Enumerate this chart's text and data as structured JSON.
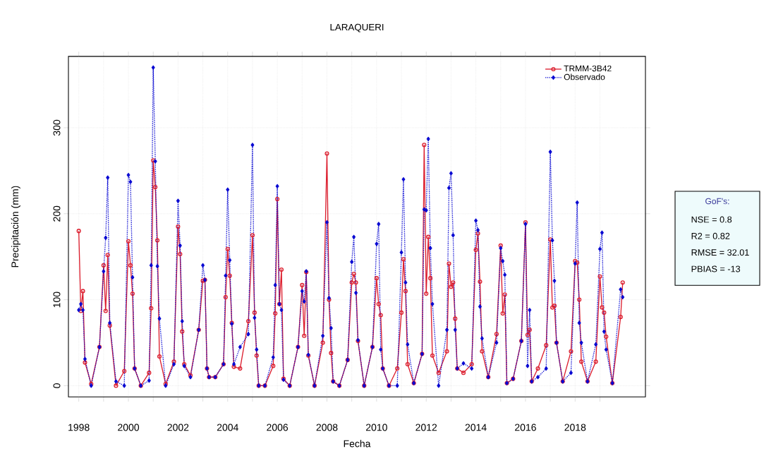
{
  "chart_data": {
    "type": "line",
    "title": "LARAQUERI",
    "xlabel": "Fecha",
    "ylabel": "Precipitación (mm)",
    "x": [
      "1998-01",
      "1998-02",
      "1998-03",
      "1998-04",
      "1998-07",
      "1998-11",
      "1999-01",
      "1999-02",
      "1999-03",
      "1999-04",
      "1999-07",
      "1999-11",
      "2000-01",
      "2000-02",
      "2000-03",
      "2000-04",
      "2000-07",
      "2000-11",
      "2000-12",
      "2001-01",
      "2001-02",
      "2001-03",
      "2001-04",
      "2001-07",
      "2001-11",
      "2002-01",
      "2002-02",
      "2002-03",
      "2002-04",
      "2002-07",
      "2002-11",
      "2003-01",
      "2003-02",
      "2003-03",
      "2003-04",
      "2003-07",
      "2003-11",
      "2003-12",
      "2004-01",
      "2004-02",
      "2004-03",
      "2004-04",
      "2004-07",
      "2004-11",
      "2005-01",
      "2005-02",
      "2005-03",
      "2005-04",
      "2005-07",
      "2005-11",
      "2005-12",
      "2006-01",
      "2006-02",
      "2006-03",
      "2006-04",
      "2006-07",
      "2006-11",
      "2007-01",
      "2007-02",
      "2007-03",
      "2007-04",
      "2007-07",
      "2007-11",
      "2008-01",
      "2008-02",
      "2008-03",
      "2008-04",
      "2008-07",
      "2008-11",
      "2009-01",
      "2009-02",
      "2009-03",
      "2009-04",
      "2009-07",
      "2009-11",
      "2010-01",
      "2010-02",
      "2010-03",
      "2010-04",
      "2010-07",
      "2010-11",
      "2011-01",
      "2011-02",
      "2011-03",
      "2011-04",
      "2011-07",
      "2011-11",
      "2011-12",
      "2012-01",
      "2012-02",
      "2012-03",
      "2012-04",
      "2012-07",
      "2012-11",
      "2012-12",
      "2013-01",
      "2013-02",
      "2013-03",
      "2013-04",
      "2013-07",
      "2013-11",
      "2014-01",
      "2014-02",
      "2014-03",
      "2014-04",
      "2014-07",
      "2014-11",
      "2015-01",
      "2015-02",
      "2015-03",
      "2015-04",
      "2015-07",
      "2015-11",
      "2016-01",
      "2016-02",
      "2016-03",
      "2016-04",
      "2016-07",
      "2016-11",
      "2017-01",
      "2017-02",
      "2017-03",
      "2017-04",
      "2017-07",
      "2017-11",
      "2018-01",
      "2018-02",
      "2018-03",
      "2018-04",
      "2018-07",
      "2018-11",
      "2019-01",
      "2019-02",
      "2019-03",
      "2019-04",
      "2019-07",
      "2019-11",
      "2019-12"
    ],
    "xlim": [
      "1997-08",
      "2020-11"
    ],
    "xticks": [
      {
        "value": "1998",
        "label": "1998"
      },
      {
        "value": "1999",
        "label": null
      },
      {
        "value": "2000",
        "label": "2000"
      },
      {
        "value": "2001",
        "label": null
      },
      {
        "value": "2002",
        "label": "2002"
      },
      {
        "value": "2003",
        "label": null
      },
      {
        "value": "2004",
        "label": "2004"
      },
      {
        "value": "2005",
        "label": null
      },
      {
        "value": "2006",
        "label": "2006"
      },
      {
        "value": "2007",
        "label": null
      },
      {
        "value": "2008",
        "label": "2008"
      },
      {
        "value": "2009",
        "label": null
      },
      {
        "value": "2010",
        "label": "2010"
      },
      {
        "value": "2011",
        "label": null
      },
      {
        "value": "2012",
        "label": "2012"
      },
      {
        "value": "2013",
        "label": null
      },
      {
        "value": "2014",
        "label": "2014"
      },
      {
        "value": "2015",
        "label": null
      },
      {
        "value": "2016",
        "label": "2016"
      },
      {
        "value": "2017",
        "label": null
      },
      {
        "value": "2018",
        "label": "2018"
      },
      {
        "value": "2019",
        "label": null
      }
    ],
    "ylim": [
      -13,
      383
    ],
    "yticks": [
      0,
      100,
      200,
      300
    ],
    "grid": true,
    "legend": "top right",
    "series": [
      {
        "name": "TRMM-3B42",
        "color": "#dc1e2e",
        "marker": "circle",
        "line_style": "solid",
        "values": [
          180,
          87,
          110,
          27,
          2,
          45,
          140,
          87,
          152,
          70,
          0,
          17,
          168,
          140,
          107,
          20,
          0,
          15,
          90,
          262,
          231,
          169,
          34,
          2,
          28,
          185,
          153,
          63,
          25,
          12,
          65,
          122,
          123,
          20,
          10,
          10,
          25,
          103,
          159,
          128,
          73,
          22,
          20,
          75,
          175,
          85,
          35,
          0,
          0,
          23,
          84,
          217,
          95,
          135,
          8,
          0,
          45,
          117,
          58,
          132,
          35,
          0,
          50,
          270,
          100,
          38,
          5,
          0,
          30,
          120,
          130,
          120,
          52,
          0,
          45,
          125,
          95,
          82,
          20,
          0,
          20,
          85,
          147,
          110,
          25,
          3,
          37,
          280,
          107,
          173,
          125,
          35,
          15,
          40,
          142,
          115,
          120,
          78,
          20,
          15,
          25,
          158,
          177,
          121,
          40,
          10,
          60,
          163,
          84,
          106,
          3,
          8,
          52,
          190,
          59,
          65,
          5,
          20,
          47,
          170,
          91,
          93,
          50,
          5,
          40,
          145,
          143,
          100,
          28,
          5,
          28,
          127,
          91,
          85,
          57,
          3,
          80,
          120
        ]
      },
      {
        "name": "Observado",
        "color": "#0a0ad2",
        "marker": "diamond",
        "line_style": "dotted",
        "values": [
          88,
          95,
          88,
          31,
          0,
          45,
          133,
          172,
          242,
          73,
          5,
          0,
          245,
          237,
          126,
          20,
          0,
          6,
          140,
          370,
          261,
          139,
          78,
          0,
          25,
          215,
          163,
          75,
          23,
          10,
          65,
          140,
          123,
          20,
          10,
          10,
          25,
          128,
          228,
          146,
          72,
          25,
          45,
          60,
          280,
          79,
          42,
          0,
          0,
          33,
          117,
          232,
          95,
          88,
          7,
          0,
          45,
          110,
          98,
          133,
          36,
          0,
          58,
          190,
          102,
          67,
          5,
          0,
          30,
          144,
          173,
          108,
          53,
          0,
          45,
          165,
          188,
          42,
          20,
          0,
          0,
          155,
          240,
          120,
          48,
          3,
          37,
          205,
          204,
          287,
          160,
          95,
          0,
          65,
          230,
          247,
          175,
          65,
          20,
          26,
          20,
          192,
          181,
          92,
          55,
          10,
          50,
          160,
          145,
          129,
          3,
          8,
          52,
          188,
          23,
          88,
          5,
          10,
          20,
          272,
          169,
          122,
          50,
          5,
          15,
          142,
          213,
          73,
          50,
          5,
          48,
          159,
          178,
          63,
          42,
          3,
          112,
          103
        ]
      }
    ],
    "annotations": [
      "GoF's:",
      "NSE = 0.8",
      "R2 = 0.82",
      "RMSE = 32.01",
      "PBIAS = -13"
    ]
  }
}
